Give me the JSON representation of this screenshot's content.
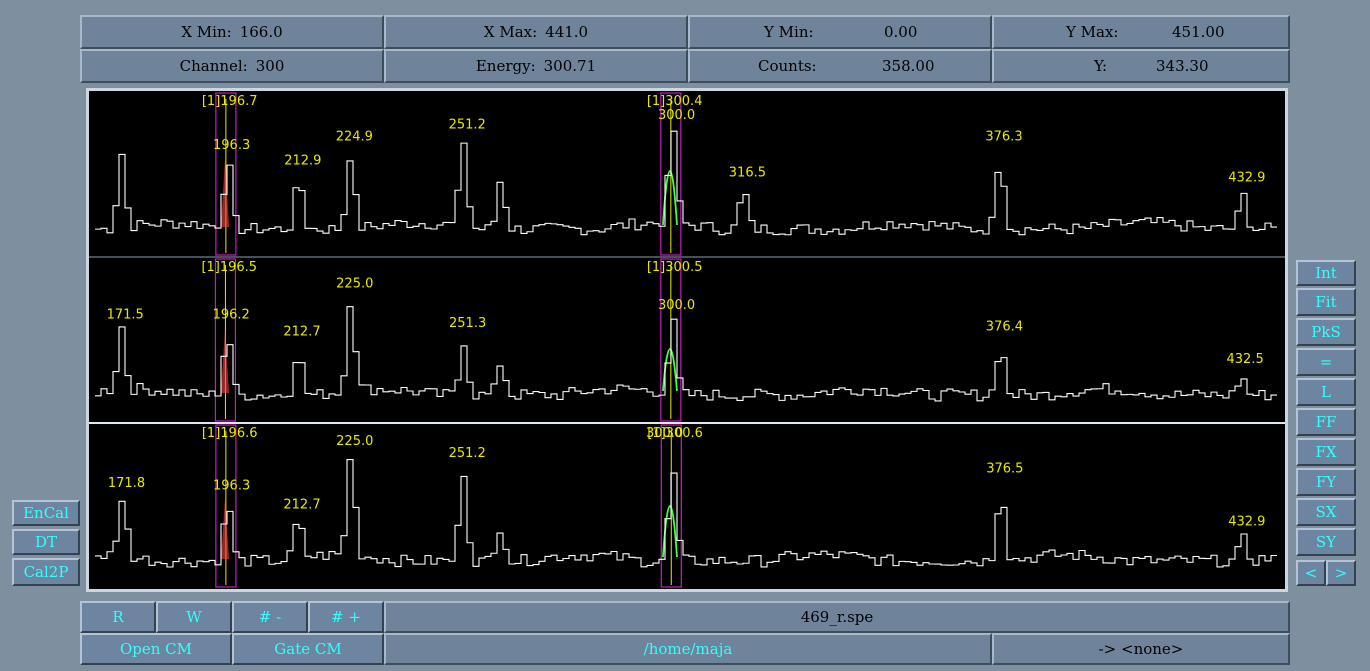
{
  "info": {
    "x_min_label": "X Min:",
    "x_min": "166.0",
    "x_max_label": "X Max:",
    "x_max": "441.0",
    "y_min_label": "Y Min:",
    "y_min": "0.00",
    "y_max_label": "Y Max:",
    "y_max": "451.00",
    "channel_label": "Channel:",
    "channel": "300",
    "energy_label": "Energy:",
    "energy": "300.71",
    "counts_label": "Counts:",
    "counts": "358.00",
    "y_label": "Y:",
    "y": "343.30"
  },
  "left_buttons": [
    "EnCal",
    "DT",
    "Cal2P"
  ],
  "right_buttons": [
    "Int",
    "Fit",
    "PkS",
    "=",
    "L",
    "FF",
    "FX",
    "FY",
    "SX",
    "SY",
    "<",
    ">"
  ],
  "bottom": {
    "r_label": "R",
    "w_label": "W",
    "minus_label": "# -",
    "plus_label": "# +",
    "open_cm_label": "Open CM",
    "gate_cm_label": "Gate CM",
    "filename": "469_r.spe",
    "path": "/home/maja",
    "target": "-> <none>"
  },
  "chart_data": {
    "type": "line",
    "xlim": [
      166.0,
      441.0
    ],
    "spectra": [
      {
        "peaks": [
          {
            "x": 171.5,
            "h": 0.62,
            "label": ""
          },
          {
            "x": 196.3,
            "h": 0.55,
            "label": "196.3"
          },
          {
            "x": 212.9,
            "h": 0.42,
            "label": "212.9"
          },
          {
            "x": 224.9,
            "h": 0.62,
            "label": "224.9"
          },
          {
            "x": 251.2,
            "h": 0.72,
            "label": "251.2"
          },
          {
            "x": 260.0,
            "h": 0.42,
            "label": ""
          },
          {
            "x": 300.0,
            "h": 0.8,
            "label": "300.0"
          },
          {
            "x": 316.5,
            "h": 0.32,
            "label": "316.5"
          },
          {
            "x": 376.3,
            "h": 0.62,
            "label": "376.3"
          },
          {
            "x": 432.9,
            "h": 0.28,
            "label": "432.9"
          }
        ],
        "gates": [
          {
            "label": "[1]196.7",
            "x": 196.5
          },
          {
            "label": "[1]300.4",
            "x": 300.2
          }
        ]
      },
      {
        "peaks": [
          {
            "x": 171.5,
            "h": 0.52,
            "label": "171.5"
          },
          {
            "x": 196.2,
            "h": 0.52,
            "label": "196.2"
          },
          {
            "x": 212.7,
            "h": 0.38,
            "label": "212.7"
          },
          {
            "x": 225.0,
            "h": 0.78,
            "label": "225.0"
          },
          {
            "x": 251.3,
            "h": 0.45,
            "label": "251.3"
          },
          {
            "x": 260.0,
            "h": 0.28,
            "label": ""
          },
          {
            "x": 300.0,
            "h": 0.6,
            "label": "300.0"
          },
          {
            "x": 376.4,
            "h": 0.42,
            "label": "376.4"
          },
          {
            "x": 432.5,
            "h": 0.15,
            "label": "432.5"
          }
        ],
        "gates": [
          {
            "label": "[1]196.5",
            "x": 196.4
          },
          {
            "label": "[1]300.5",
            "x": 300.2
          }
        ]
      },
      {
        "peaks": [
          {
            "x": 171.8,
            "h": 0.5,
            "label": "171.8"
          },
          {
            "x": 196.3,
            "h": 0.48,
            "label": "196.3"
          },
          {
            "x": 212.7,
            "h": 0.32,
            "label": "212.7"
          },
          {
            "x": 225.0,
            "h": 0.85,
            "label": "225.0"
          },
          {
            "x": 251.2,
            "h": 0.75,
            "label": "251.2"
          },
          {
            "x": 260.0,
            "h": 0.3,
            "label": ""
          },
          {
            "x": 300.0,
            "h": 0.75,
            "label": ""
          },
          {
            "x": 376.5,
            "h": 0.62,
            "label": "376.5"
          },
          {
            "x": 432.9,
            "h": 0.18,
            "label": "432.9"
          }
        ],
        "gates": [
          {
            "label": "[1]196.6",
            "x": 196.5
          },
          {
            "label": "[1]300.6",
            "x": 300.3
          },
          {
            "label": "300.0",
            "x": 300.0
          }
        ]
      }
    ]
  },
  "colors": {
    "trace": "#ffffff",
    "label": "#e8e800",
    "gate": "#c020c0",
    "fit": "#40ff40",
    "fit2": "#ff4040",
    "cyan_text": "#32ffff",
    "panel": "#6f839a",
    "background": "#7e8fa0"
  }
}
